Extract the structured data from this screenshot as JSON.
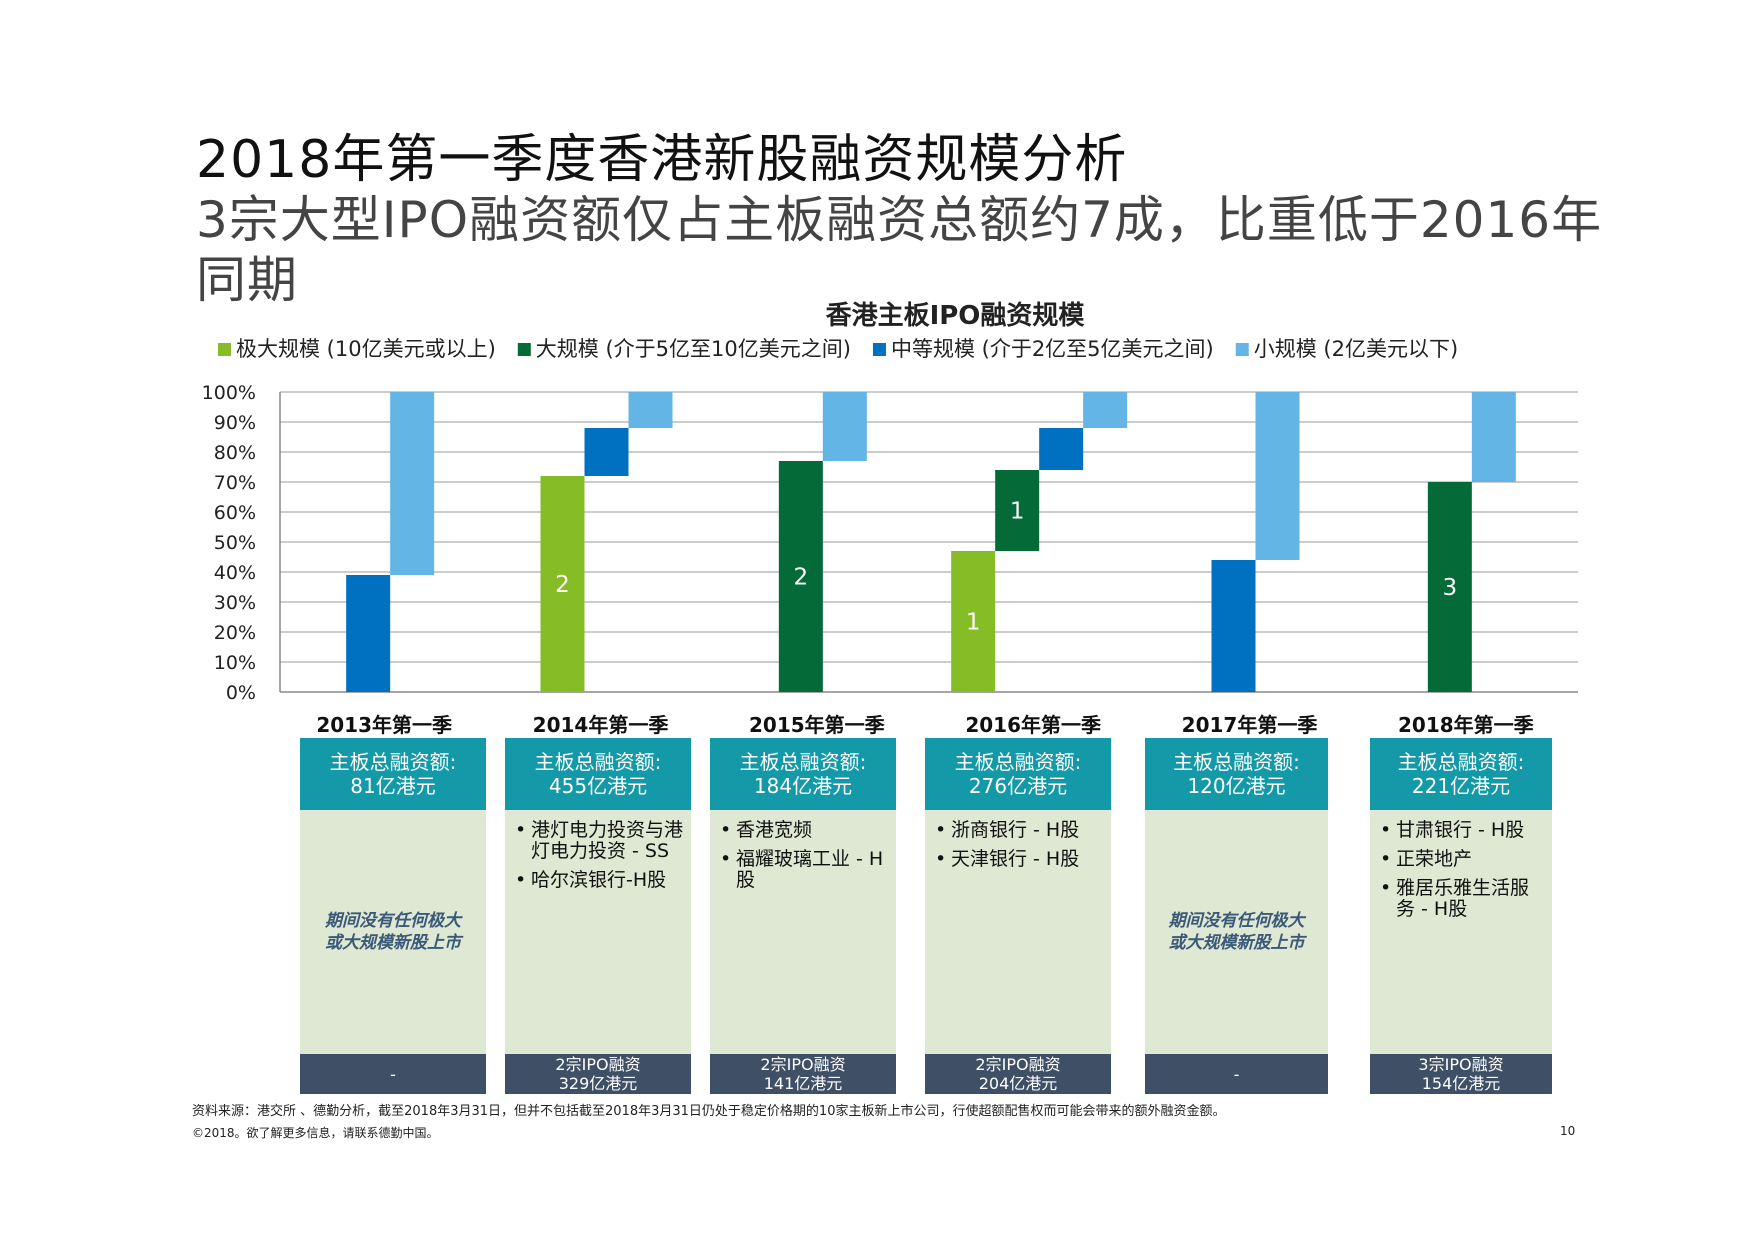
{
  "title_line1": "2018年第一季度香港新股融资规模分析",
  "title_line2": "3宗大型IPO融资额仅占主板融资总额约7成，比重低于2016年同期",
  "chart_data": {
    "type": "bar",
    "stacked": "waterfall-100%",
    "title": "香港主板IPO融资规模",
    "legend": [
      {
        "key": "xl",
        "label": "极大规模 (10亿美元或以上)",
        "color": "#86bc25"
      },
      {
        "key": "l",
        "label": "大规模 (介于5亿至10亿美元之间)",
        "color": "#046a38"
      },
      {
        "key": "m",
        "label": "中等规模 (介于2亿至5亿美元之间)",
        "color": "#0070c0"
      },
      {
        "key": "s",
        "label": "小规模 (2亿美元以下)",
        "color": "#62b5e5"
      }
    ],
    "categories": [
      "2013年第一季",
      "2014年第一季",
      "2015年第一季",
      "2016年第一季",
      "2017年第一季",
      "2018年第一季"
    ],
    "series": [
      {
        "name": "极大规模",
        "key": "xl",
        "values": [
          0,
          72,
          0,
          47,
          0,
          0
        ]
      },
      {
        "name": "大规模",
        "key": "l",
        "values": [
          0,
          0,
          77,
          27,
          0,
          70
        ]
      },
      {
        "name": "中等规模",
        "key": "m",
        "values": [
          39,
          16,
          0,
          14,
          44,
          0
        ]
      },
      {
        "name": "小规模",
        "key": "s",
        "values": [
          61,
          12,
          23,
          12,
          56,
          30
        ]
      }
    ],
    "bar_counts": [
      {
        "category": 1,
        "series": "xl",
        "text": "2"
      },
      {
        "category": 2,
        "series": "l",
        "text": "2"
      },
      {
        "category": 3,
        "series": "xl",
        "text": "1"
      },
      {
        "category": 3,
        "series": "l",
        "text": "1"
      },
      {
        "category": 5,
        "series": "l",
        "text": "3"
      }
    ],
    "yticks": [
      "0%",
      "10%",
      "20%",
      "30%",
      "40%",
      "50%",
      "60%",
      "70%",
      "80%",
      "90%",
      "100%"
    ],
    "ylim": [
      0,
      100
    ],
    "xlabel": "",
    "ylabel": ""
  },
  "panels": [
    {
      "head1": "主板总融资额:",
      "head2": "81亿港元",
      "items": [],
      "note": "期间没有任何极大或大规模新股上市",
      "foot1": "-",
      "foot2": ""
    },
    {
      "head1": "主板总融资额:",
      "head2": "455亿港元",
      "items": [
        "港灯电力投资与港灯电力投资 - SS",
        "哈尔滨银行-H股"
      ],
      "note": "",
      "foot1": "2宗IPO融资",
      "foot2": "329亿港元"
    },
    {
      "head1": "主板总融资额:",
      "head2": "184亿港元",
      "items": [
        "香港宽频",
        "福耀玻璃工业 - H股"
      ],
      "note": "",
      "foot1": "2宗IPO融资",
      "foot2": "141亿港元"
    },
    {
      "head1": "主板总融资额:",
      "head2": "276亿港元",
      "items": [
        "浙商银行 - H股",
        "天津银行 - H股"
      ],
      "note": "",
      "foot1": "2宗IPO融资",
      "foot2": "204亿港元"
    },
    {
      "head1": "主板总融资额:",
      "head2": "120亿港元",
      "items": [],
      "note": "期间没有任何极大或大规模新股上市",
      "foot1": "-",
      "foot2": ""
    },
    {
      "head1": "主板总融资额:",
      "head2": "221亿港元",
      "items": [
        "甘肃银行 - H股",
        "正荣地产",
        "雅居乐雅生活服务 - H股"
      ],
      "note": "",
      "foot1": "3宗IPO融资",
      "foot2": "154亿港元"
    }
  ],
  "source": "资料来源：港交所 、德勤分析，截至2018年3月31日，但并不包括截至2018年3月31日仍处于稳定价格期的10家主板新上市公司，行使超额配售权而可能会带来的额外融资金额。",
  "copyright": "©2018。欲了解更多信息，请联系德勤中国。",
  "page_number": "10"
}
